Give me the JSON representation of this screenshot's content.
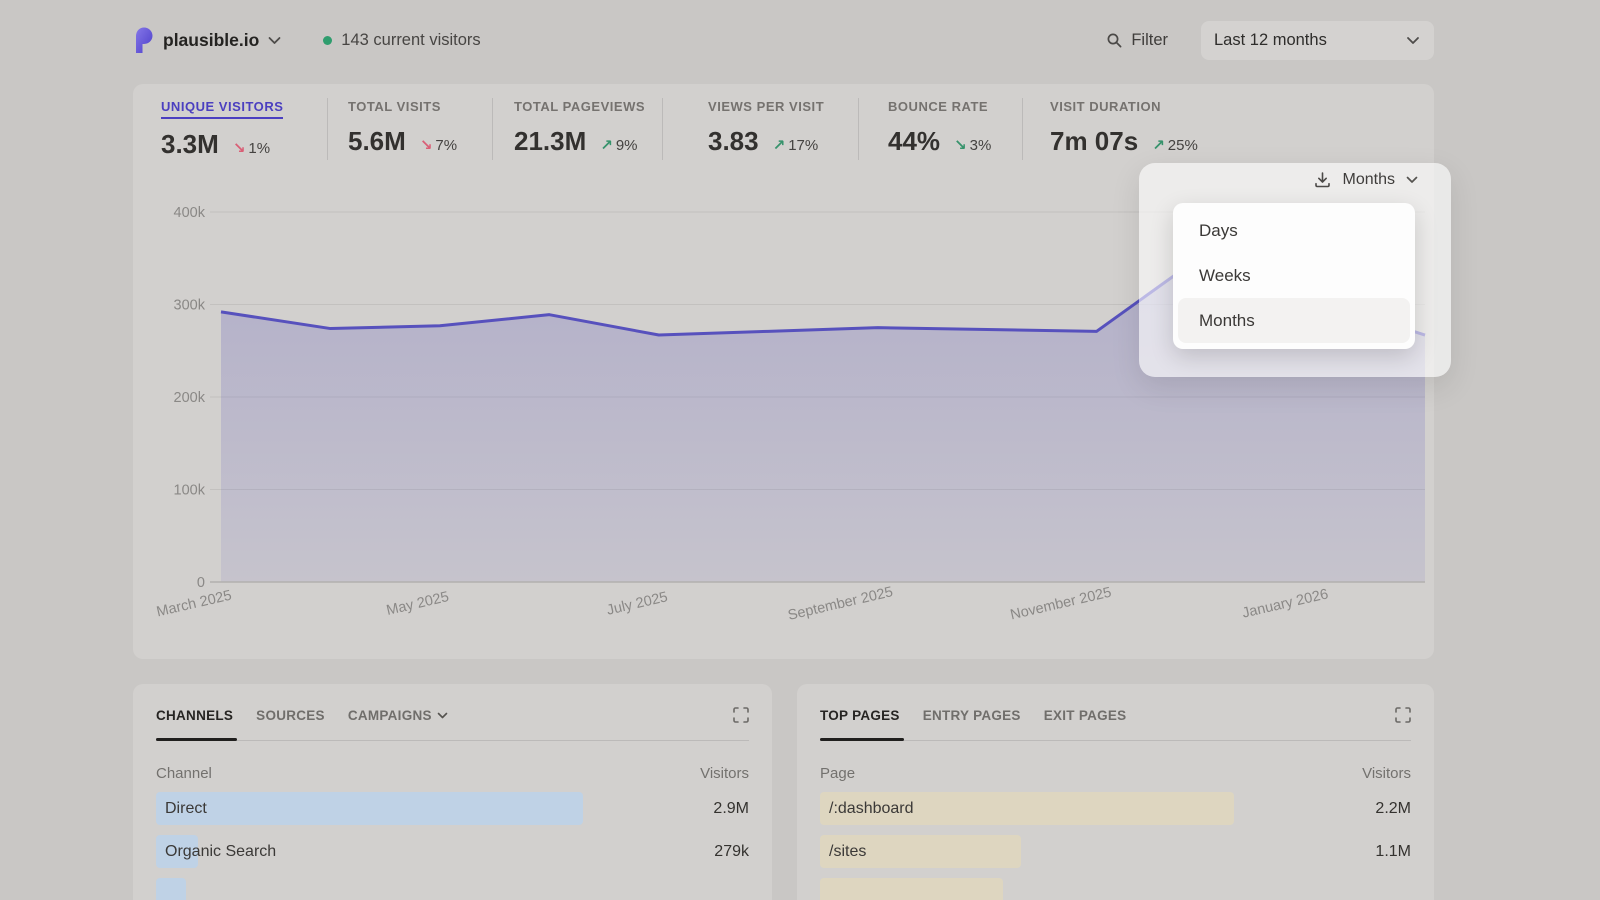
{
  "header": {
    "site_name": "plausible.io",
    "current_visitors": "143 current visitors",
    "filter_label": "Filter",
    "date_range": "Last 12 months"
  },
  "stats": [
    {
      "label": "UNIQUE VISITORS",
      "value": "3.3M",
      "arrow": "↘",
      "change": "1%",
      "trend": "down-bad",
      "active": true
    },
    {
      "label": "TOTAL VISITS",
      "value": "5.6M",
      "arrow": "↘",
      "change": "7%",
      "trend": "down-bad"
    },
    {
      "label": "TOTAL PAGEVIEWS",
      "value": "21.3M",
      "arrow": "↗",
      "change": "9%",
      "trend": "up-good"
    },
    {
      "label": "VIEWS PER VISIT",
      "value": "3.83",
      "arrow": "↗",
      "change": "17%",
      "trend": "up-good"
    },
    {
      "label": "BOUNCE RATE",
      "value": "44%",
      "arrow": "↘",
      "change": "3%",
      "trend": "down-good"
    },
    {
      "label": "VISIT DURATION",
      "value": "7m 07s",
      "arrow": "↗",
      "change": "25%",
      "trend": "up-good"
    }
  ],
  "interval_dropdown": {
    "selected": "Months",
    "options": [
      "Days",
      "Weeks",
      "Months"
    ]
  },
  "chart_data": {
    "type": "area",
    "x": [
      "March 2025",
      "April 2025",
      "May 2025",
      "June 2025",
      "July 2025",
      "August 2025",
      "September 2025",
      "October 2025",
      "November 2025",
      "December 2025",
      "January 2026",
      "February 2026"
    ],
    "values": [
      292000,
      274000,
      277000,
      289000,
      267000,
      271000,
      275000,
      273000,
      271000,
      356000,
      305000,
      267000
    ],
    "ylim": [
      0,
      400000
    ],
    "yticks": [
      0,
      100000,
      200000,
      300000,
      400000
    ],
    "ytick_labels": [
      "0",
      "100k",
      "200k",
      "300k",
      "400k"
    ],
    "xtick_labels": [
      "March 2025",
      "May 2025",
      "July 2025",
      "September 2025",
      "November 2025",
      "January 2026"
    ],
    "xtick_indices": [
      0,
      2,
      4,
      6,
      8,
      10
    ],
    "grid": "horizontal",
    "legend": "none"
  },
  "channels_panel": {
    "tabs": [
      "CHANNELS",
      "SOURCES",
      "CAMPAIGNS"
    ],
    "columns": {
      "name": "Channel",
      "value": "Visitors"
    },
    "rows": [
      {
        "label": "Direct",
        "value": "2.9M",
        "bar_pct": 72
      },
      {
        "label": "Organic Search",
        "value": "279k",
        "bar_pct": 7
      },
      {
        "label": "",
        "value": "",
        "bar_pct": 5
      }
    ],
    "bar_color": "#bfd2e6"
  },
  "pages_panel": {
    "tabs": [
      "TOP PAGES",
      "ENTRY PAGES",
      "EXIT PAGES"
    ],
    "columns": {
      "name": "Page",
      "value": "Visitors"
    },
    "rows": [
      {
        "label": "/:dashboard",
        "value": "2.2M",
        "bar_pct": 70
      },
      {
        "label": "/sites",
        "value": "1.1M",
        "bar_pct": 34
      },
      {
        "label": "",
        "value": "",
        "bar_pct": 31
      }
    ],
    "bar_color": "#ded6c0"
  },
  "colors": {
    "accent": "#4b3fc0",
    "line": "#5751bd",
    "positive": "#37936c",
    "negative": "#d95f76",
    "live_dot": "#2f9d6e"
  }
}
